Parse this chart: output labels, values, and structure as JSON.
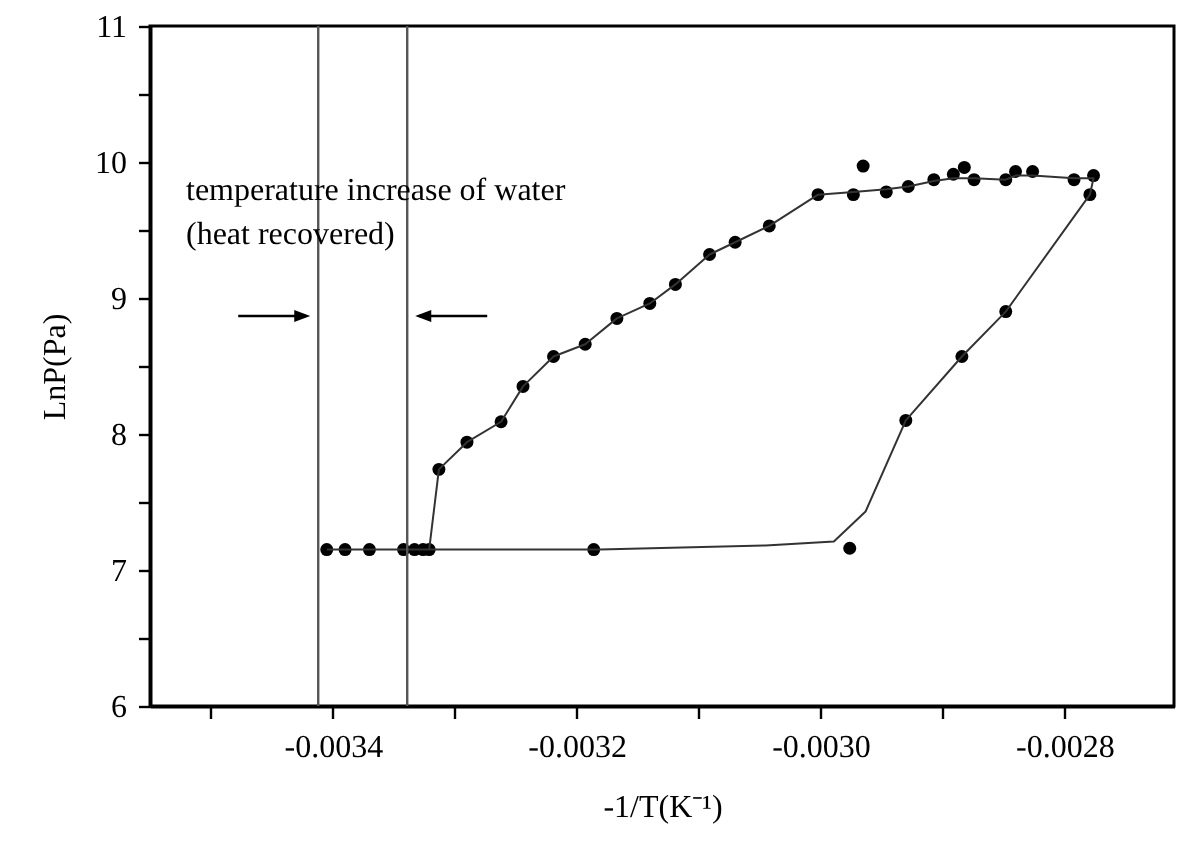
{
  "chart_data": {
    "type": "scatter",
    "xlabel": "-1/T(K⁻¹)",
    "ylabel": "LnP(Pa)",
    "xlim": [
      -0.00355,
      -0.00271
    ],
    "ylim": [
      6,
      11
    ],
    "xticks": [
      {
        "value": -0.0035,
        "label": null
      },
      -0.0034,
      {
        "value": -0.0033,
        "label": null
      },
      -0.0032,
      {
        "value": -0.0031,
        "label": null
      },
      {
        "value": -0.003,
        "label": "-0.0030"
      },
      {
        "value": -0.0029,
        "label": null
      },
      -0.0028
    ],
    "yticks": [
      6,
      {
        "value": 6.5,
        "label": null
      },
      7,
      {
        "value": 7.5,
        "label": null
      },
      8,
      {
        "value": 8.5,
        "label": null
      },
      9,
      {
        "value": 9.5,
        "label": null
      },
      10,
      {
        "value": 10.5,
        "label": null
      },
      11
    ],
    "grid": false,
    "tick_labels": "xy",
    "series": [
      {
        "color": "#000000",
        "marker": "circle",
        "x": [
          -0.003405,
          -0.00339,
          -0.00337,
          -0.003342,
          -0.003333,
          -0.003326,
          -0.003321,
          -0.003186,
          -0.003313,
          -0.00329,
          -0.003262,
          -0.003244,
          -0.003219,
          -0.003193,
          -0.003167,
          -0.00314,
          -0.003119,
          -0.003091,
          -0.00307,
          -0.003042,
          -0.003002,
          -0.002973,
          -0.002965,
          -0.002946,
          -0.002928,
          -0.002907,
          -0.002891,
          -0.002882,
          -0.002874,
          -0.002848,
          -0.00284,
          -0.002826,
          -0.002792,
          -0.002776,
          -0.002779,
          -0.002848,
          -0.002884,
          -0.00293,
          -0.002976
        ],
        "values": [
          7.15,
          7.15,
          7.15,
          7.15,
          7.15,
          7.15,
          7.15,
          7.15,
          7.74,
          7.94,
          8.09,
          8.35,
          8.57,
          8.66,
          8.85,
          8.96,
          9.1,
          9.32,
          9.41,
          9.53,
          9.76,
          9.76,
          9.97,
          9.78,
          9.82,
          9.87,
          9.91,
          9.96,
          9.87,
          9.87,
          9.93,
          9.93,
          9.87,
          9.9,
          9.76,
          8.9,
          8.57,
          8.1,
          7.16
        ]
      },
      {
        "type": "line",
        "color": "#333333",
        "marker": "none",
        "line_style": "solid",
        "x": [
          -0.003405,
          -0.003321,
          -0.003313,
          -0.00329,
          -0.003262,
          -0.003244,
          -0.003219,
          -0.003193,
          -0.003167,
          -0.00314,
          -0.003119,
          -0.003091,
          -0.00307,
          -0.003042,
          -0.003002,
          -0.002973,
          -0.002946,
          -0.002928,
          -0.002907,
          -0.002891,
          -0.002874,
          -0.002848,
          -0.00284,
          -0.002826,
          -0.002792,
          -0.002776,
          -0.002779,
          -0.002848,
          -0.002884,
          -0.00293,
          -0.002963,
          -0.002989,
          -0.003045,
          -0.003181,
          -0.003321
        ],
        "values": [
          7.15,
          7.15,
          7.74,
          7.94,
          8.09,
          8.35,
          8.57,
          8.66,
          8.85,
          8.96,
          9.1,
          9.32,
          9.41,
          9.53,
          9.76,
          9.78,
          9.8,
          9.82,
          9.86,
          9.88,
          9.88,
          9.87,
          9.9,
          9.9,
          9.88,
          9.88,
          9.76,
          8.9,
          8.57,
          8.1,
          7.43,
          7.21,
          7.18,
          7.15,
          7.15
        ]
      }
    ],
    "ref_lines": [
      {
        "axis": "x",
        "value": -0.003412,
        "color": "#555555"
      },
      {
        "axis": "x",
        "value": -0.003339,
        "color": "#555555"
      }
    ],
    "annotations": [
      "temperature increase of water",
      "(heat recovered)"
    ]
  }
}
